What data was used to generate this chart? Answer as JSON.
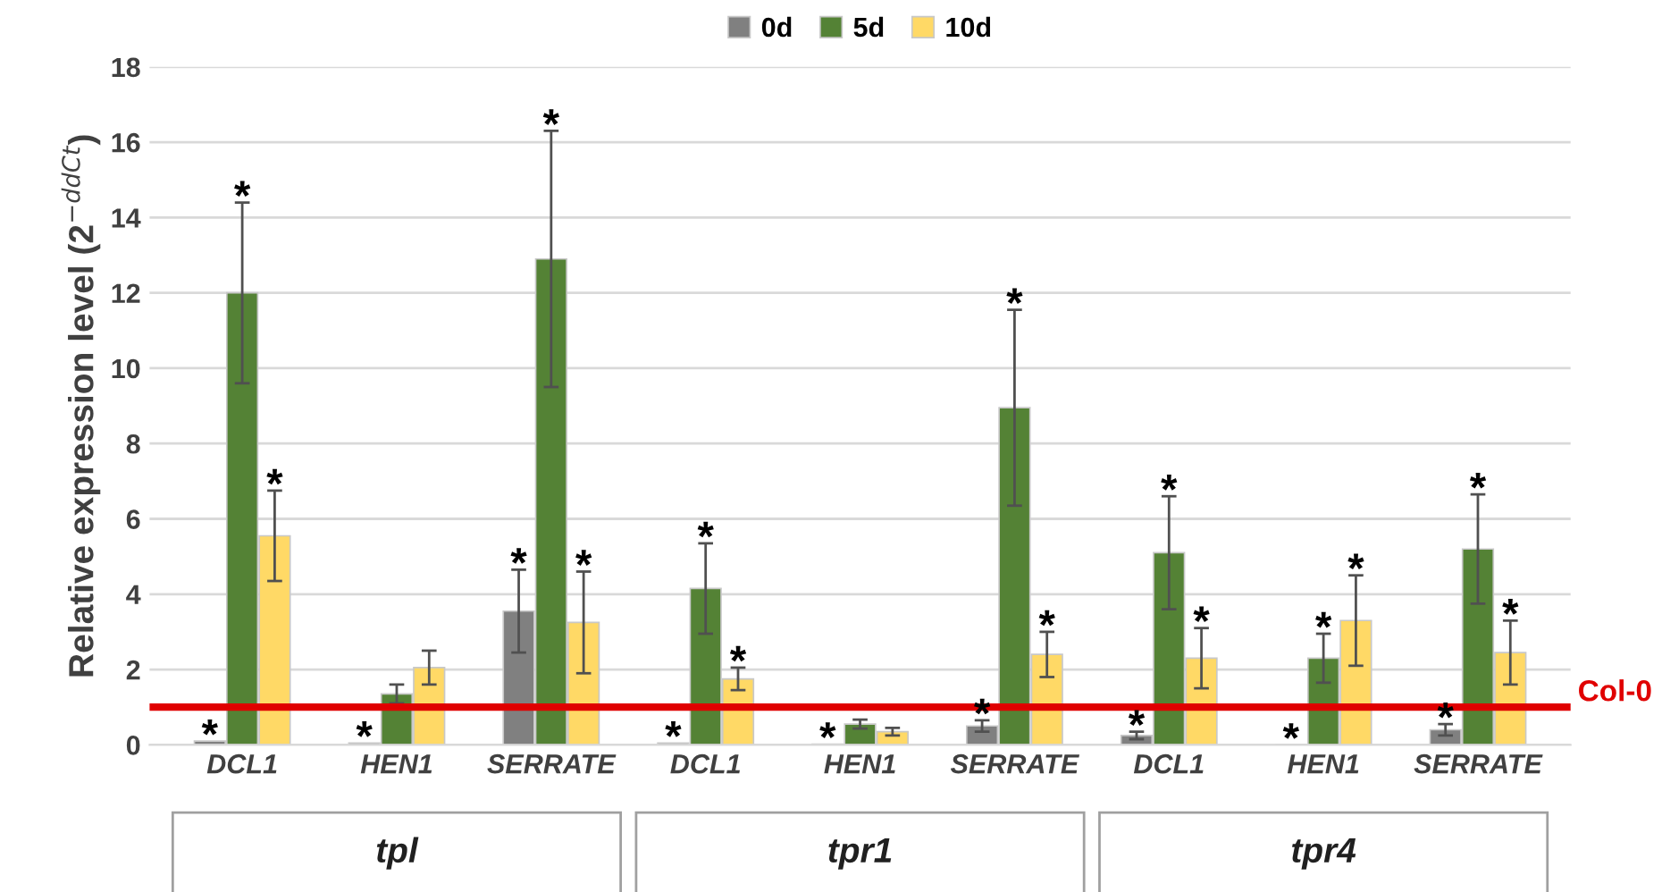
{
  "chart_data": {
    "type": "bar",
    "ylabel": "Relative expression level (2$^{−ddCt}$)",
    "categories": [
      "DCL1",
      "HEN1",
      "SERRATE",
      "DCL1",
      "HEN1",
      "SERRATE",
      "DCL1",
      "HEN1",
      "SERRATE"
    ],
    "series": [
      {
        "name": "0d",
        "color": "#808080",
        "values": [
          0.1,
          0.05,
          3.55,
          0.05,
          0.02,
          0.5,
          0.25,
          null,
          0.4
        ],
        "errors": [
          null,
          null,
          1.1,
          null,
          null,
          0.15,
          0.1,
          null,
          0.15
        ],
        "value_labels": [
          "*",
          "*",
          "*",
          "*",
          "*",
          "*",
          "*",
          "*",
          "*"
        ]
      },
      {
        "name": "5d",
        "color": "#548235",
        "values": [
          12.0,
          1.35,
          12.9,
          4.15,
          0.55,
          8.95,
          5.1,
          2.3,
          5.2
        ],
        "errors": [
          2.4,
          0.25,
          3.4,
          1.2,
          0.12,
          2.6,
          1.5,
          0.65,
          1.45
        ],
        "value_labels": [
          "*",
          null,
          "*",
          "*",
          null,
          "*",
          "*",
          "*",
          "*"
        ]
      },
      {
        "name": "10d",
        "color": "#ffd966",
        "values": [
          5.55,
          2.05,
          3.25,
          1.75,
          0.35,
          2.4,
          2.3,
          3.3,
          2.45
        ],
        "errors": [
          1.2,
          0.45,
          1.35,
          0.3,
          0.1,
          0.6,
          0.8,
          1.2,
          0.85
        ],
        "value_labels": [
          "*",
          null,
          "*",
          "*",
          null,
          "*",
          "*",
          "*",
          "*"
        ]
      }
    ],
    "ylim": [
      0,
      18
    ],
    "yticks": [
      0,
      2,
      4,
      6,
      8,
      10,
      12,
      14,
      16,
      18
    ],
    "grid": "y",
    "legend": "top",
    "ref_lines": [
      {
        "axis": "y",
        "value": 1,
        "label": "Col-0",
        "color": "#e00000"
      }
    ],
    "annotations": [
      "tpl",
      "tpr1",
      "tpr4"
    ]
  }
}
